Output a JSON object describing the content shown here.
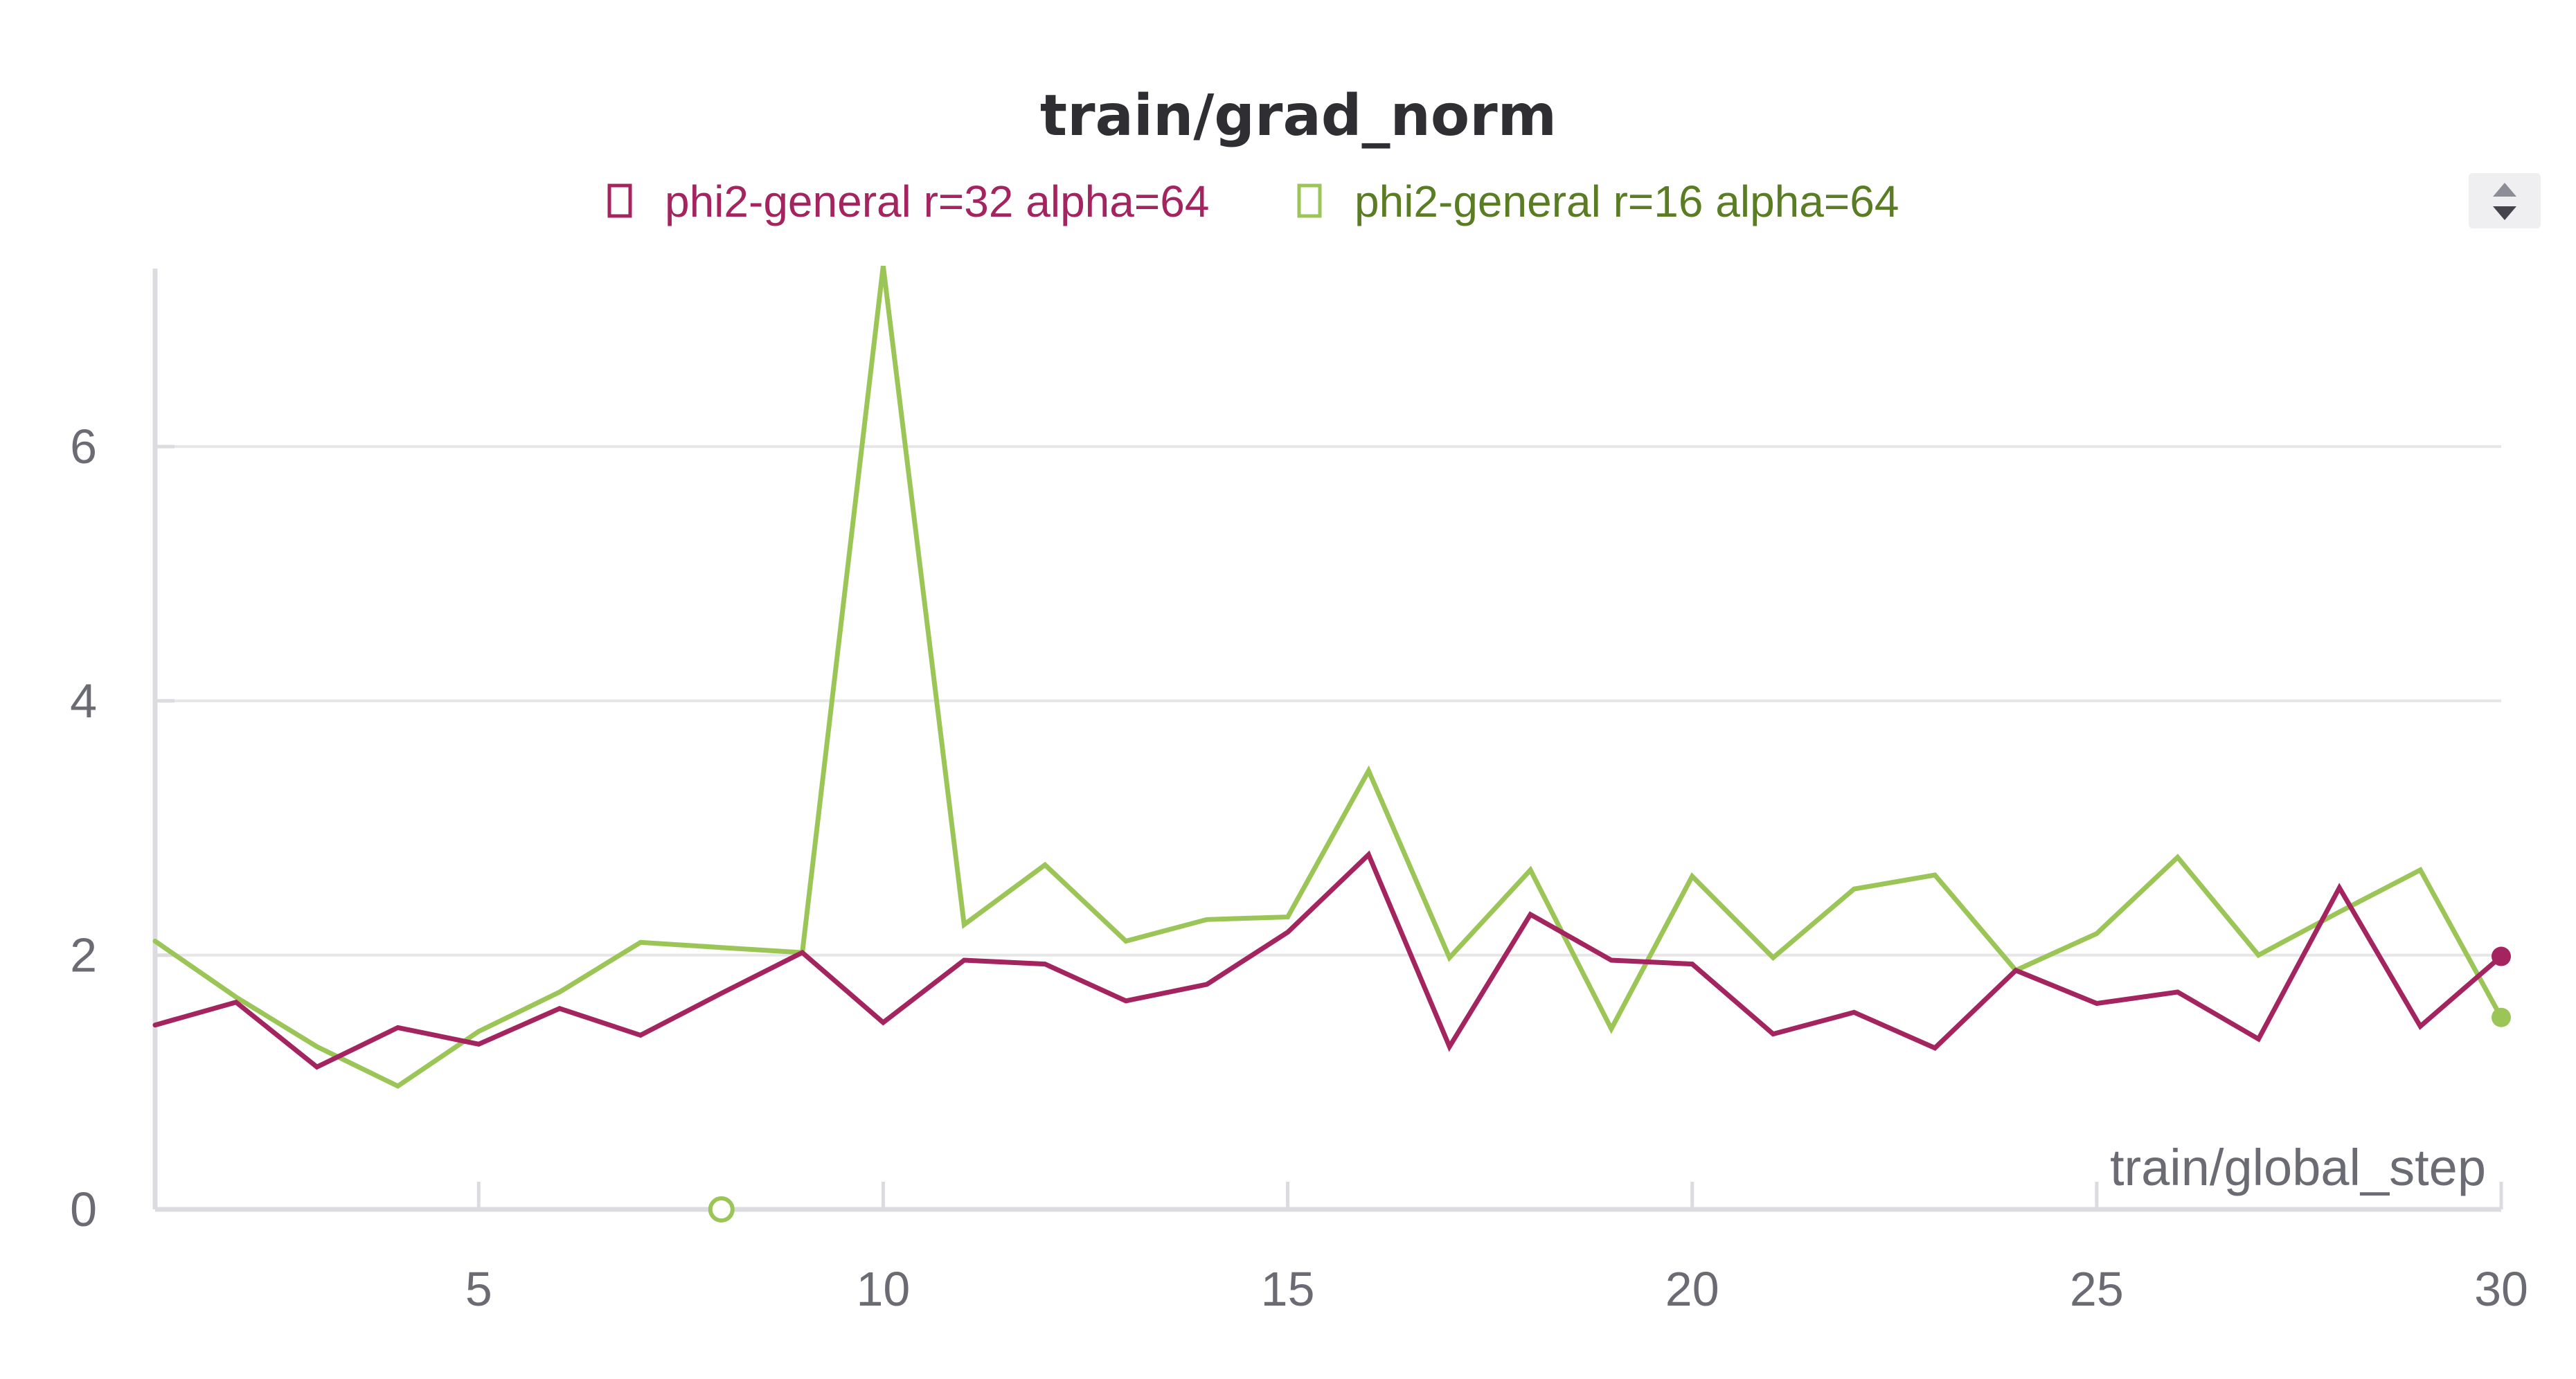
{
  "chart_data": {
    "type": "line",
    "title": "train/grad_norm",
    "xlabel": "train/global_step",
    "ylabel": "",
    "xlim": [
      1,
      30
    ],
    "ylim": [
      0,
      7.4
    ],
    "x_ticks": [
      5,
      10,
      15,
      20,
      25,
      30
    ],
    "y_ticks": [
      0,
      2,
      4,
      6
    ],
    "grid": "horizontal",
    "legend_position": "top-center",
    "x": [
      1,
      2,
      3,
      4,
      5,
      6,
      7,
      8,
      9,
      10,
      11,
      12,
      13,
      14,
      15,
      16,
      17,
      18,
      19,
      20,
      21,
      22,
      23,
      24,
      25,
      26,
      27,
      28,
      29,
      30
    ],
    "series": [
      {
        "name": "phi2-general r=32 alpha=64",
        "color": "#a3245f",
        "text_color": "#a3245f",
        "values": [
          1.45,
          1.63,
          1.12,
          1.43,
          1.3,
          1.58,
          1.37,
          1.7,
          2.02,
          1.47,
          1.96,
          1.93,
          1.64,
          1.77,
          2.18,
          2.79,
          1.28,
          2.32,
          1.96,
          1.93,
          1.38,
          1.55,
          1.27,
          1.88,
          1.62,
          1.71,
          1.34,
          2.53,
          1.44,
          1.99
        ]
      },
      {
        "name": "phi2-general r=16 alpha=64",
        "color": "#9bc657",
        "text_color": "#5a7d24",
        "values": [
          2.11,
          1.67,
          1.28,
          0.97,
          1.4,
          1.71,
          2.1,
          2.06,
          2.02,
          7.42,
          2.24,
          2.71,
          2.11,
          2.28,
          2.3,
          3.45,
          1.98,
          2.67,
          1.42,
          2.62,
          1.98,
          2.52,
          2.63,
          1.88,
          2.17,
          2.77,
          2.0,
          2.34,
          2.67,
          1.51
        ]
      }
    ],
    "markers": [
      {
        "series": 1,
        "x": 8,
        "y": 0,
        "style": "hollow-circle"
      }
    ]
  }
}
